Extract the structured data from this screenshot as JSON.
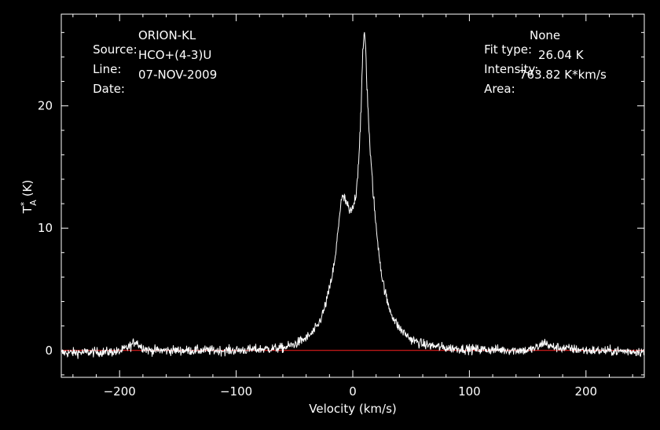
{
  "header": {
    "source_label": "Source:",
    "source_value": "ORION-KL",
    "line_label": "Line:",
    "line_value": "HCO+(4-3)U",
    "date_label": "Date:",
    "date_value": "07-NOV-2009",
    "fit_label": "Fit type:",
    "fit_value": "None",
    "intensity_label": "Intensity:",
    "intensity_value": "26.04 K",
    "area_label": "Area:",
    "area_value": "763.82 K*km/s"
  },
  "chart_data": {
    "type": "line",
    "title": "",
    "xlabel": "Velocity (km/s)",
    "ylabel_main": "T",
    "ylabel_sup": "*",
    "ylabel_sub": "A",
    "ylabel_unit": "(K)",
    "xlim": [
      -250,
      250
    ],
    "ylim": [
      -2.2,
      27.5
    ],
    "xticks": [
      -200,
      -100,
      0,
      100,
      200
    ],
    "yticks": [
      0,
      10,
      20
    ],
    "xtick_labels": [
      "−200",
      "−100",
      "0",
      "100",
      "200"
    ],
    "ytick_labels": [
      "0",
      "10",
      "20"
    ],
    "grid": false,
    "colors": {
      "background": "#000000",
      "axes": "#ffffff",
      "spectrum": "#ffffff",
      "baseline": "#ff2020"
    },
    "baseline": {
      "y": 0,
      "x_range": [
        -250,
        250
      ]
    },
    "series": [
      {
        "noise_rms": 0.2,
        "x": [
          -250,
          -200,
          -190,
          -186,
          -183,
          -175,
          -150,
          -100,
          -80,
          -60,
          -50,
          -40,
          -35,
          -30,
          -25,
          -20,
          -15,
          -12,
          -10,
          -8,
          -5,
          -3,
          0,
          3,
          5,
          7,
          8,
          9,
          10,
          11,
          12,
          15,
          20,
          25,
          30,
          35,
          40,
          50,
          60,
          80,
          100,
          150,
          160,
          164,
          170,
          200,
          250
        ],
        "y": [
          -0.2,
          -0.1,
          0.4,
          0.8,
          0.4,
          0.0,
          0.0,
          0.0,
          0.1,
          0.2,
          0.5,
          1.0,
          1.4,
          2.0,
          3.2,
          5.0,
          7.5,
          10.5,
          12.3,
          12.5,
          12.0,
          11.3,
          11.5,
          13.0,
          15.5,
          19.5,
          22.5,
          25.0,
          26.0,
          25.0,
          22.0,
          16.0,
          10.0,
          6.0,
          3.8,
          2.6,
          1.8,
          0.9,
          0.5,
          0.2,
          0.1,
          0.0,
          0.3,
          0.7,
          0.3,
          0.0,
          -0.1
        ]
      }
    ]
  }
}
